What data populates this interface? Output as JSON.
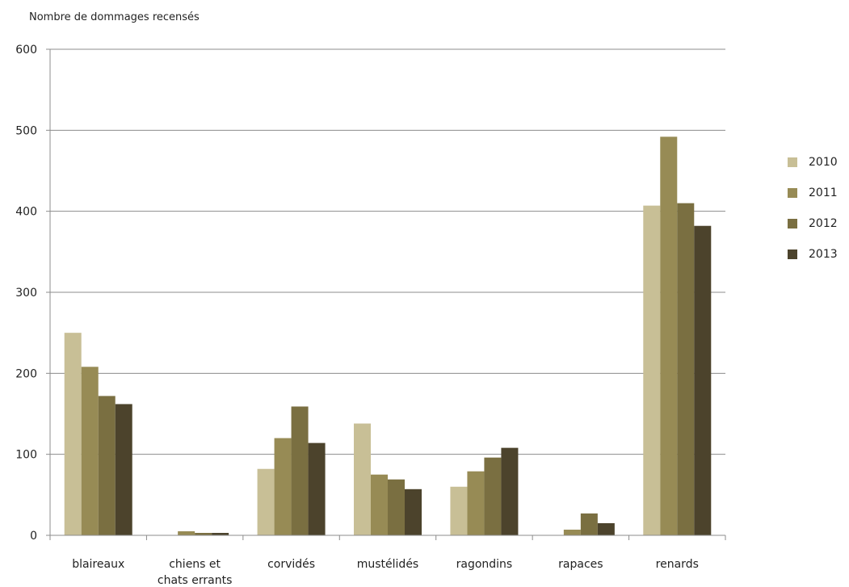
{
  "chart_data": {
    "type": "bar",
    "ylabel": "Nombre de dommages recensés",
    "ylim": [
      0,
      600
    ],
    "yticks": [
      0,
      100,
      200,
      300,
      400,
      500,
      600
    ],
    "grid": true,
    "legend_position": "right",
    "categories": [
      [
        "blaireaux"
      ],
      [
        "chiens et",
        "chats errants"
      ],
      [
        "corvidés"
      ],
      [
        "mustélidés"
      ],
      [
        "ragondins"
      ],
      [
        "rapaces"
      ],
      [
        "renards"
      ]
    ],
    "series": [
      {
        "name": "2010",
        "color": "#c8bf96",
        "values": [
          250,
          0,
          82,
          138,
          60,
          0,
          407
        ]
      },
      {
        "name": "2011",
        "color": "#978b55",
        "values": [
          208,
          5,
          120,
          75,
          79,
          7,
          492
        ]
      },
      {
        "name": "2012",
        "color": "#7a6f41",
        "values": [
          172,
          3,
          159,
          69,
          96,
          27,
          410
        ]
      },
      {
        "name": "2013",
        "color": "#4c432c",
        "values": [
          162,
          3,
          114,
          57,
          108,
          15,
          382
        ]
      }
    ]
  }
}
